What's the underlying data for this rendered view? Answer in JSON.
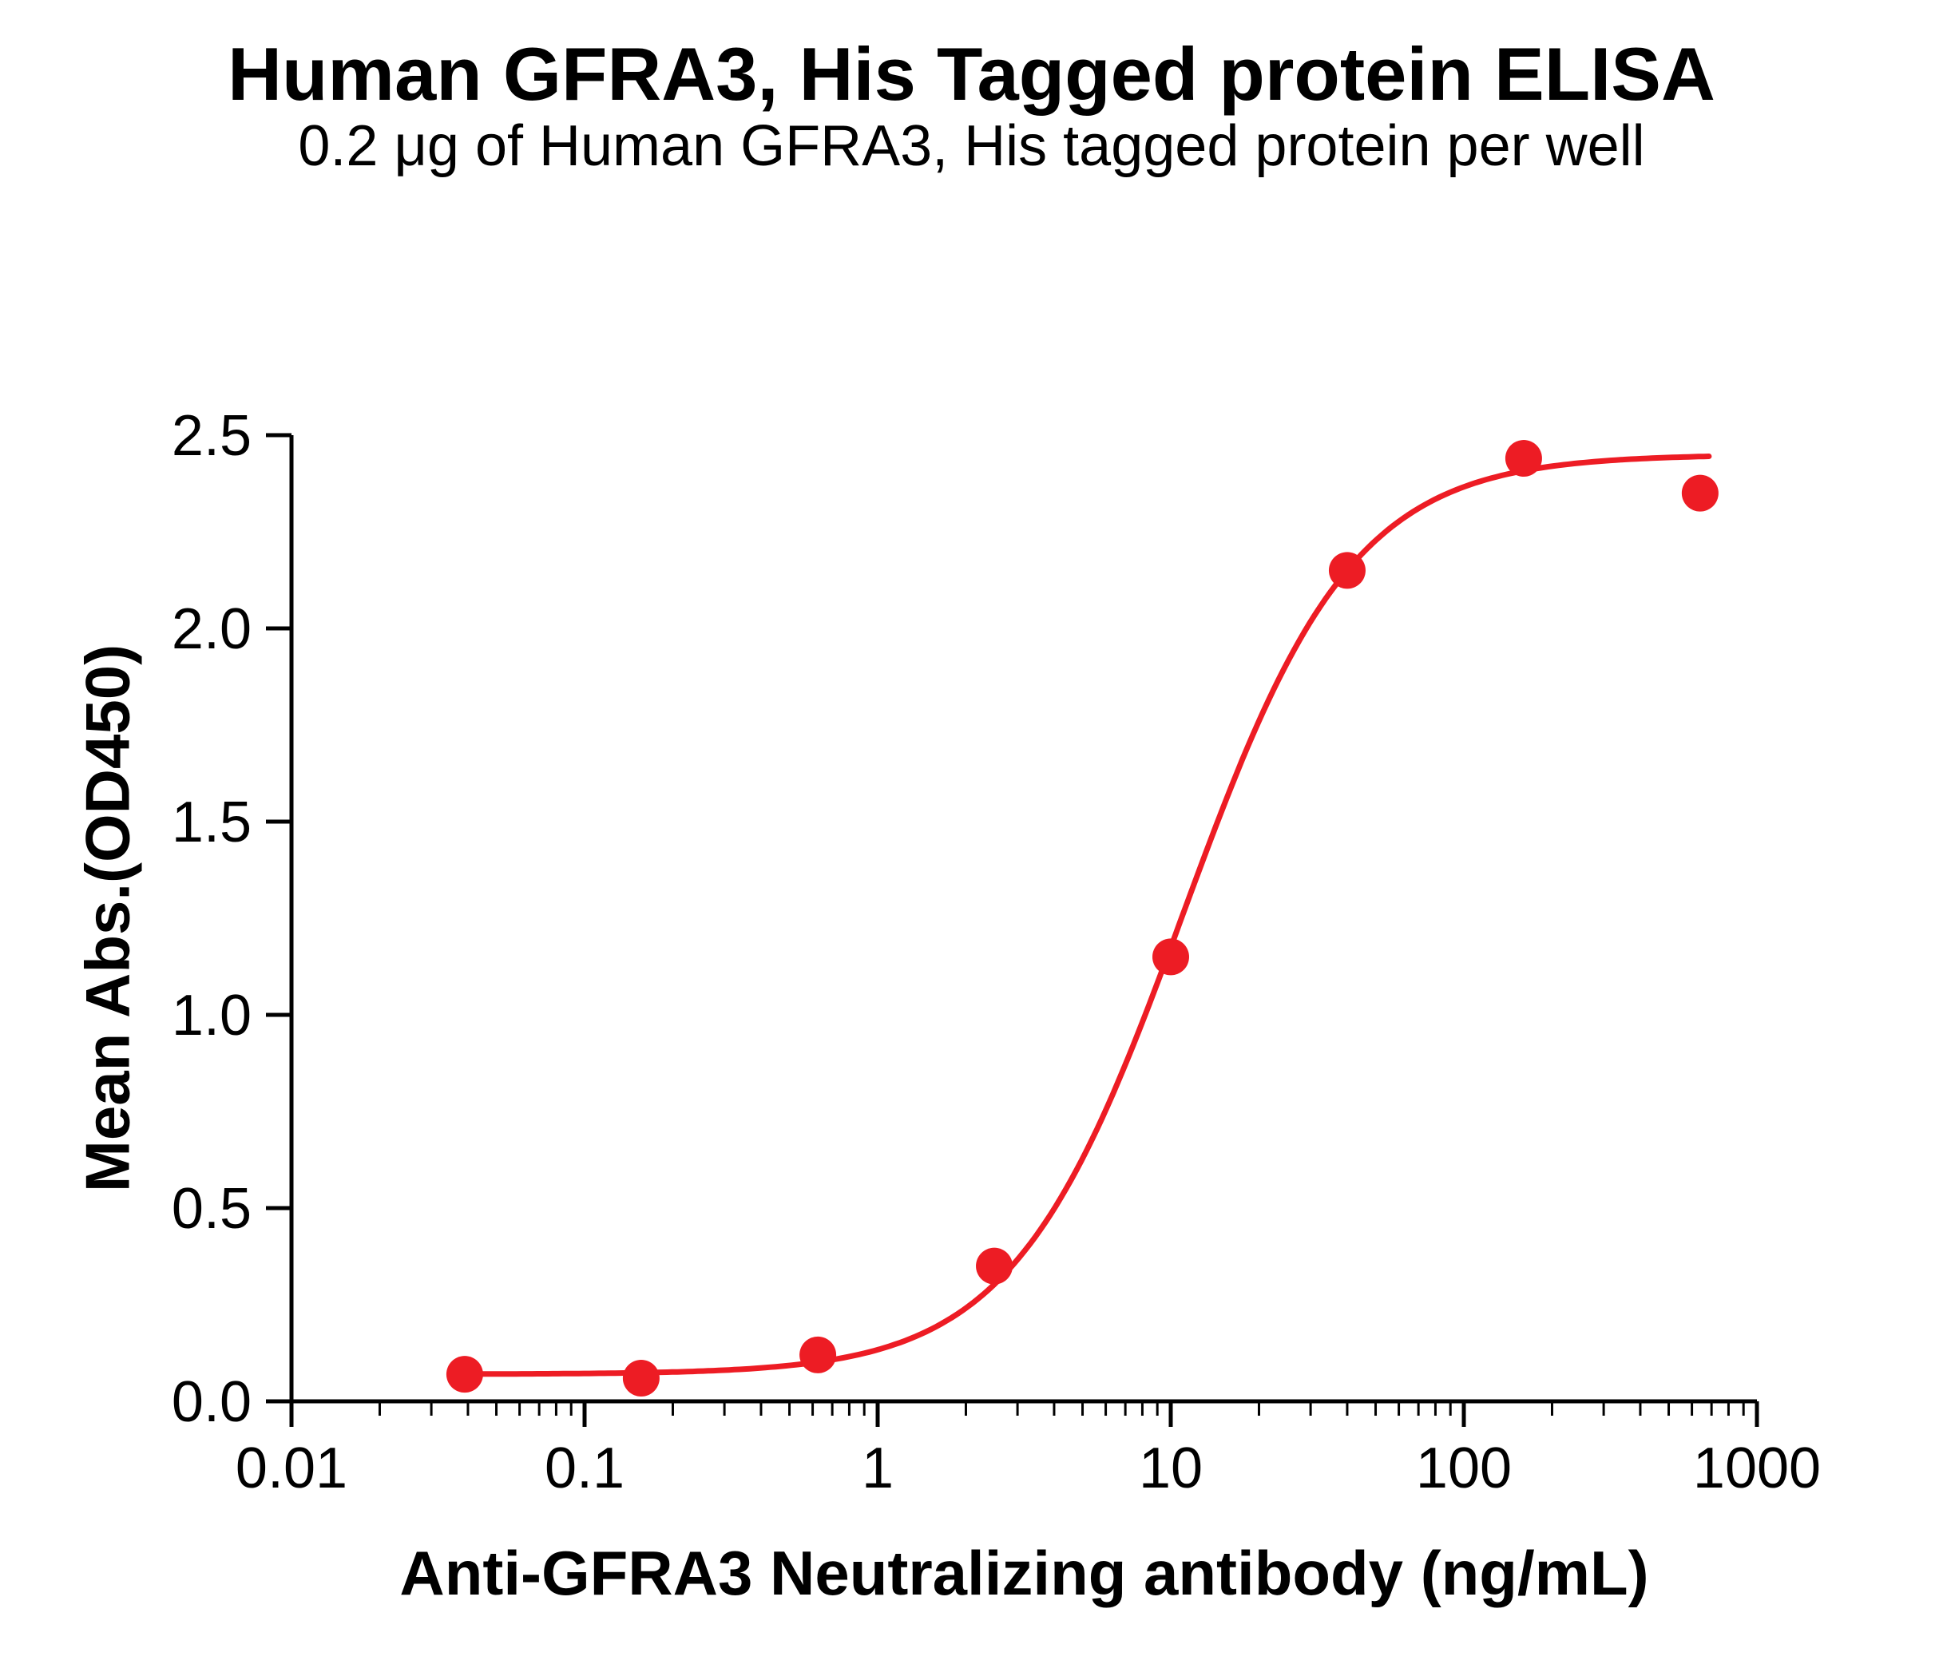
{
  "chart_data": {
    "type": "scatter",
    "title": "Human GFRA3, His Tagged protein ELISA",
    "subtitle": "0.2 μg of Human GFRA3, His tagged protein per well",
    "xlabel": "Anti-GFRA3 Neutralizing antibody (ng/mL)",
    "ylabel": "Mean Abs.(OD450)",
    "x_scale": "log",
    "xlim": [
      0.01,
      1000
    ],
    "ylim": [
      0.0,
      2.5
    ],
    "x_ticks": [
      0.01,
      0.1,
      1,
      10,
      100,
      1000
    ],
    "x_tick_labels": [
      "0.01",
      "0.1",
      "1",
      "10",
      "100",
      "1000"
    ],
    "y_ticks": [
      0.0,
      0.5,
      1.0,
      1.5,
      2.0,
      2.5
    ],
    "y_tick_labels": [
      "0.0",
      "0.5",
      "1.0",
      "1.5",
      "2.0",
      "2.5"
    ],
    "grid": false,
    "legend": "none",
    "series": [
      {
        "name": "Anti-GFRA3 Neutralizing antibody",
        "x": [
          0.039,
          0.156,
          0.625,
          2.5,
          10,
          40,
          160,
          640
        ],
        "y": [
          0.07,
          0.06,
          0.12,
          0.35,
          1.15,
          2.15,
          2.44,
          2.35
        ]
      }
    ],
    "fit": {
      "type": "4PL-sigmoid",
      "bottom": 0.07,
      "top": 2.45,
      "ec50": 11,
      "hill": 1.5
    },
    "series_color": "#ed1c24",
    "axis_color": "#000000",
    "background_color": "#ffffff"
  }
}
